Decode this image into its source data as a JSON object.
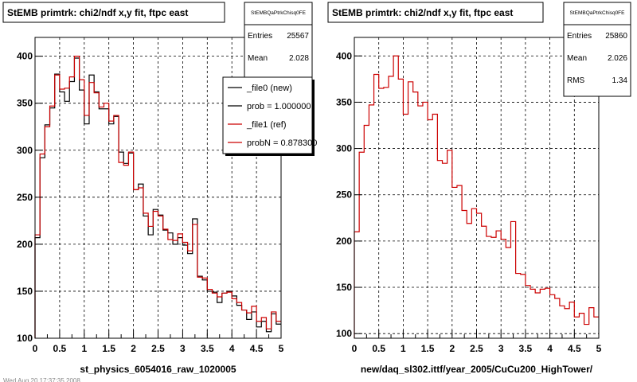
{
  "footer": {
    "text": "Wed Aug 20 17:37:35 2008"
  },
  "chart_data": [
    {
      "type": "line",
      "title": "StEMB primtrk: chi2/ndf x,y fit, ftpc east",
      "xlabel": "st_physics_6054016_raw_1020005",
      "ylabel": "",
      "xlim": [
        0,
        5
      ],
      "ylim": [
        100,
        420
      ],
      "grid": true,
      "xticks": [
        "0",
        "0.5",
        "1",
        "1.5",
        "2",
        "2.5",
        "3",
        "3.5",
        "4",
        "4.5",
        "5"
      ],
      "yticks": [
        "100",
        "150",
        "200",
        "250",
        "300",
        "350",
        "400"
      ],
      "stats": {
        "name": "StEMBQaPtrkChisq0FE",
        "rows": [
          {
            "label": "Entries",
            "value": "25567"
          },
          {
            "label": "Mean",
            "value": "2.028"
          }
        ]
      },
      "legend": {
        "placement": "top-right",
        "entries": [
          {
            "label": "_file0 (new)",
            "color": "#000000"
          },
          {
            "label": "prob = 1.000000",
            "color": "#000000"
          },
          {
            "label": "_file1 (ref)",
            "color": "#cc0000"
          },
          {
            "label": "probN = 0.878300",
            "color": "#cc0000"
          }
        ]
      },
      "series": [
        {
          "name": "_file0 (new)",
          "color": "#000000",
          "values": [
            207,
            292,
            327,
            345,
            381,
            362,
            352,
            373,
            398,
            364,
            328,
            380,
            362,
            344,
            344,
            328,
            336,
            298,
            286,
            297,
            258,
            264,
            230,
            210,
            237,
            231,
            215,
            212,
            200,
            207,
            199,
            190,
            227,
            166,
            162,
            150,
            149,
            138,
            148,
            150,
            145,
            135,
            130,
            120,
            128,
            112,
            118,
            107,
            126,
            115
          ]
        },
        {
          "name": "_file1 (ref)",
          "color": "#cc0000",
          "values": [
            210,
            296,
            325,
            347,
            380,
            365,
            366,
            378,
            400,
            375,
            337,
            372,
            361,
            346,
            350,
            331,
            337,
            287,
            284,
            298,
            258,
            260,
            233,
            219,
            235,
            230,
            216,
            205,
            204,
            211,
            202,
            193,
            221,
            165,
            164,
            152,
            148,
            144,
            148,
            149,
            142,
            138,
            130,
            127,
            134,
            118,
            122,
            110,
            128,
            118
          ]
        }
      ]
    },
    {
      "type": "line",
      "title": "StEMB primtrk: chi2/ndf x,y fit, ftpc east",
      "xlabel": "new/daq_sl302.ittf/year_2005/CuCu200_HighTower/",
      "ylabel": "",
      "xlim": [
        0,
        5
      ],
      "ylim": [
        95,
        420
      ],
      "grid": true,
      "xticks": [
        "0",
        "0.5",
        "1",
        "1.5",
        "2",
        "2.5",
        "3",
        "3.5",
        "4",
        "4.5",
        "5"
      ],
      "yticks": [
        "100",
        "150",
        "200",
        "250",
        "300",
        "350",
        "400"
      ],
      "stats": {
        "name": "StEMBQaPtrkChisq0FE",
        "rows": [
          {
            "label": "Entries",
            "value": "25860"
          },
          {
            "label": "Mean",
            "value": "2.026"
          },
          {
            "label": "RMS",
            "value": "1.34"
          }
        ]
      },
      "series": [
        {
          "name": "",
          "color": "#cc0000",
          "values": [
            210,
            296,
            325,
            347,
            380,
            365,
            366,
            378,
            400,
            375,
            337,
            372,
            361,
            346,
            350,
            331,
            337,
            287,
            284,
            298,
            258,
            260,
            233,
            219,
            235,
            230,
            216,
            205,
            204,
            211,
            202,
            193,
            221,
            165,
            164,
            152,
            148,
            144,
            148,
            149,
            142,
            138,
            130,
            127,
            134,
            118,
            122,
            110,
            128,
            118
          ]
        }
      ]
    }
  ]
}
